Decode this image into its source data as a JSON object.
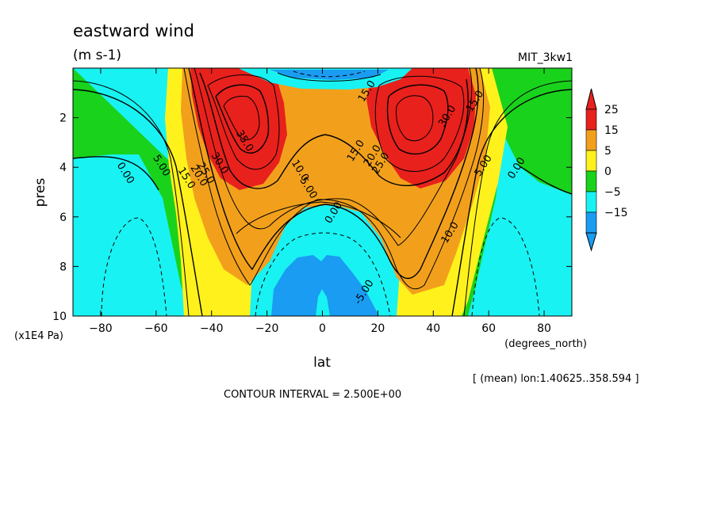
{
  "chart_data": {
    "type": "heatmap",
    "subtype": "filled-contour",
    "title": "eastward wind",
    "units": "(m s-1)",
    "dataset": "MIT_3kw1",
    "xlabel": "lat",
    "xunits": "(degrees_north)",
    "ylabel": "pres",
    "yunits": "(x1E4 Pa)",
    "xlim": [
      -90,
      90
    ],
    "ylim": [
      0,
      10
    ],
    "y_inverted": true,
    "x_ticks": [
      -80,
      -60,
      -40,
      -20,
      0,
      20,
      40,
      60,
      80
    ],
    "y_ticks": [
      2,
      4,
      6,
      8,
      10
    ],
    "contour_interval_text": "CONTOUR INTERVAL = 2.500E+00",
    "averaging_note": "[ (mean) lon:1.40625..358.594 ]",
    "colorbar": {
      "labels": [
        "25",
        "15",
        "5",
        "0",
        "-5",
        "-15"
      ],
      "colors": [
        "#e8211c",
        "#f2a01c",
        "#fff21c",
        "#19d21c",
        "#19f2f2",
        "#1a9cf2"
      ]
    },
    "contour_labels": [
      {
        "text": "35.0",
        "lat": -29,
        "p": 3.0
      },
      {
        "text": "30.0",
        "lat": -38,
        "p": 3.9
      },
      {
        "text": "25.0",
        "lat": -43,
        "p": 4.3
      },
      {
        "text": "20.0",
        "lat": -45.5,
        "p": 4.4
      },
      {
        "text": "15.0",
        "lat": -50,
        "p": 4.5
      },
      {
        "text": "5.00",
        "lat": -59,
        "p": 4.0
      },
      {
        "text": "0.00",
        "lat": -72,
        "p": 4.3
      },
      {
        "text": "10.0",
        "lat": -9,
        "p": 4.2
      },
      {
        "text": "5.00",
        "lat": -6,
        "p": 4.9
      },
      {
        "text": "0.00",
        "lat": 5,
        "p": 5.9
      },
      {
        "text": "15.0",
        "lat": 13,
        "p": 3.4
      },
      {
        "text": "20.0",
        "lat": 19,
        "p": 3.6
      },
      {
        "text": "25.0",
        "lat": 22,
        "p": 3.9
      },
      {
        "text": "30.0",
        "lat": 46,
        "p": 2.0
      },
      {
        "text": "15.0",
        "lat": 56,
        "p": 1.4
      },
      {
        "text": "15.0",
        "lat": 17,
        "p": 1.0
      },
      {
        "text": "10.0",
        "lat": 47,
        "p": 6.7
      },
      {
        "text": "5.00",
        "lat": 59,
        "p": 4.0
      },
      {
        "text": "0.00",
        "lat": 71,
        "p": 4.1
      },
      {
        "text": "-5.00",
        "lat": 16,
        "p": 9.1
      }
    ]
  }
}
